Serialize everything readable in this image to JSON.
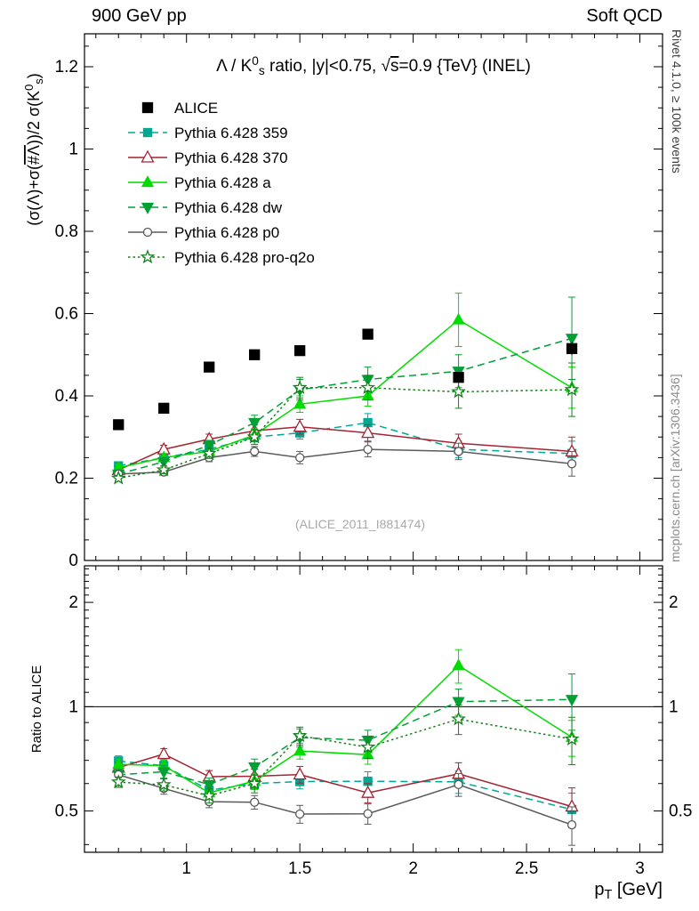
{
  "header": {
    "left": "900 GeV pp",
    "right": "Soft QCD"
  },
  "side_notes": {
    "top": "Rivet 4.1.0, ≥ 100k events",
    "bottom": "mcplots.cern.ch [arXiv:1306.3436]"
  },
  "watermark": "(ALICE_2011_I881474)",
  "chart_data": {
    "type": "line",
    "title": "Λ / K0s ratio, |y|<0.75, √s=0.9 {TeV} (INEL)",
    "title_parts": [
      {
        "t": "Λ / K"
      },
      {
        "t": "0",
        "s": "sup"
      },
      {
        "t": "s",
        "s": "sub"
      },
      {
        "t": " ratio, |y|<0.75, "
      },
      {
        "t": "√"
      },
      {
        "t": "s",
        "s": "ol"
      },
      {
        "t": "=0.9 {TeV} (INEL)"
      }
    ],
    "ylabel": "(σ(Λ)+σ(#Λ))/2 σ(K0s)",
    "ylabel_parts": [
      {
        "t": "(σ(Λ)+σ("
      },
      {
        "t": "#Λ",
        "s": "ol"
      },
      {
        "t": "))/2 σ(K"
      },
      {
        "t": "0",
        "s": "sup"
      },
      {
        "t": "s",
        "s": "sub"
      },
      {
        "t": ")"
      }
    ],
    "xlabel": "pT [GeV]",
    "xlabel_parts": [
      {
        "t": "p"
      },
      {
        "t": "T",
        "s": "sub"
      },
      {
        "t": " [GeV]"
      }
    ],
    "ratio_ylabel": "Ratio to ALICE",
    "legend_position": "top-left",
    "grid": false,
    "x_axis": {
      "min": 0.55,
      "max": 3.1,
      "majors": [
        1,
        1.5,
        2,
        2.5,
        3
      ],
      "labels": [
        "1",
        "1.5",
        "2",
        "2.5",
        "3"
      ],
      "minor_step": 0.1
    },
    "y_main": {
      "min": 0,
      "max": 1.28,
      "majors": [
        0,
        0.2,
        0.4,
        0.6,
        0.8,
        1.0,
        1.2
      ],
      "labels": [
        "0",
        "0.2",
        "0.4",
        "0.6",
        "0.8",
        "1",
        "1.2"
      ],
      "minor_step": 0.05
    },
    "y_ratio": {
      "scale": "log",
      "min": 0.38,
      "max": 2.55,
      "majors": [
        0.5,
        1,
        2
      ],
      "labels": [
        "0.5",
        "1",
        "2"
      ],
      "minors": [
        0.4,
        0.6,
        0.7,
        0.8,
        0.9,
        1.1,
        1.2,
        1.3,
        1.4,
        1.5,
        1.6,
        1.7,
        1.8,
        1.9,
        2.1,
        2.2,
        2.3,
        2.4,
        2.5
      ],
      "reference_line": 1
    },
    "x": [
      0.7,
      0.9,
      1.1,
      1.3,
      1.5,
      1.8,
      2.2,
      2.7
    ],
    "reference": {
      "name": "ALICE",
      "color": "#000000",
      "marker": "square",
      "filled": true,
      "msize": 5.5,
      "values": [
        0.33,
        0.37,
        0.47,
        0.5,
        0.51,
        0.55,
        0.445,
        0.515
      ],
      "errors": [
        0.008,
        0.008,
        0.008,
        0.009,
        0.009,
        0.012,
        0.013,
        0.016
      ]
    },
    "series": [
      {
        "name": "Pythia 6.428 359",
        "color": "#00a894",
        "line": "dashed",
        "marker": "square",
        "filled": true,
        "msize": 4.5,
        "values": [
          0.23,
          0.25,
          0.27,
          0.3,
          0.31,
          0.335,
          0.27,
          0.26
        ],
        "errors": [
          0.008,
          0.008,
          0.01,
          0.012,
          0.015,
          0.022,
          0.02,
          0.03
        ],
        "ratio": [
          0.697,
          0.676,
          0.574,
          0.6,
          0.608,
          0.609,
          0.607,
          0.505
        ],
        "ratio_errors": [
          0.024,
          0.022,
          0.021,
          0.024,
          0.029,
          0.04,
          0.045,
          0.058
        ]
      },
      {
        "name": "Pythia 6.428 370",
        "color": "#a32432",
        "line": "solid",
        "marker": "triangle-up",
        "filled": false,
        "msize": 5.5,
        "values": [
          0.22,
          0.27,
          0.295,
          0.315,
          0.325,
          0.31,
          0.285,
          0.265
        ],
        "errors": [
          0.008,
          0.01,
          0.012,
          0.015,
          0.018,
          0.02,
          0.022,
          0.035
        ],
        "ratio": [
          0.667,
          0.73,
          0.628,
          0.63,
          0.637,
          0.564,
          0.64,
          0.515
        ],
        "ratio_errors": [
          0.024,
          0.027,
          0.026,
          0.03,
          0.035,
          0.036,
          0.049,
          0.068
        ]
      },
      {
        "name": "Pythia 6.428 a",
        "color": "#00dc00",
        "line": "solid",
        "marker": "triangle-up",
        "filled": true,
        "msize": 5,
        "values": [
          0.225,
          0.25,
          0.265,
          0.305,
          0.38,
          0.4,
          0.585,
          0.42
        ],
        "errors": [
          0.008,
          0.01,
          0.012,
          0.015,
          0.02,
          0.025,
          0.065,
          0.05
        ],
        "ratio": [
          0.682,
          0.676,
          0.564,
          0.61,
          0.745,
          0.727,
          1.315,
          0.816
        ],
        "ratio_errors": [
          0.024,
          0.027,
          0.026,
          0.03,
          0.039,
          0.045,
          0.146,
          0.097
        ]
      },
      {
        "name": "Pythia 6.428 dw",
        "color": "#00a035",
        "line": "dashed",
        "marker": "triangle-down",
        "filled": true,
        "msize": 5,
        "values": [
          0.21,
          0.24,
          0.28,
          0.335,
          0.415,
          0.44,
          0.46,
          0.54
        ],
        "errors": [
          0.008,
          0.01,
          0.012,
          0.018,
          0.025,
          0.03,
          0.04,
          0.1
        ],
        "ratio": [
          0.636,
          0.649,
          0.596,
          0.67,
          0.814,
          0.8,
          1.034,
          1.049
        ],
        "ratio_errors": [
          0.024,
          0.027,
          0.026,
          0.036,
          0.049,
          0.055,
          0.09,
          0.194
        ]
      },
      {
        "name": "Pythia 6.428 p0",
        "color": "#5a5a5a",
        "line": "solid",
        "marker": "circle",
        "filled": false,
        "msize": 4.5,
        "values": [
          0.21,
          0.215,
          0.25,
          0.265,
          0.25,
          0.27,
          0.265,
          0.235
        ],
        "errors": [
          0.007,
          0.008,
          0.01,
          0.012,
          0.015,
          0.018,
          0.02,
          0.03
        ],
        "ratio": [
          0.636,
          0.581,
          0.532,
          0.53,
          0.49,
          0.491,
          0.596,
          0.456
        ],
        "ratio_errors": [
          0.021,
          0.022,
          0.021,
          0.024,
          0.029,
          0.033,
          0.045,
          0.058
        ]
      },
      {
        "name": "Pythia 6.428 pro-q2o",
        "color": "#15801c",
        "line": "dotted",
        "marker": "star",
        "filled": false,
        "msize": 5,
        "values": [
          0.2,
          0.22,
          0.26,
          0.3,
          0.42,
          0.42,
          0.41,
          0.415
        ],
        "errors": [
          0.007,
          0.009,
          0.012,
          0.018,
          0.025,
          0.03,
          0.04,
          0.065
        ],
        "ratio": [
          0.606,
          0.595,
          0.553,
          0.6,
          0.824,
          0.764,
          0.921,
          0.806
        ],
        "ratio_errors": [
          0.021,
          0.024,
          0.026,
          0.036,
          0.049,
          0.055,
          0.09,
          0.126
        ]
      }
    ]
  }
}
